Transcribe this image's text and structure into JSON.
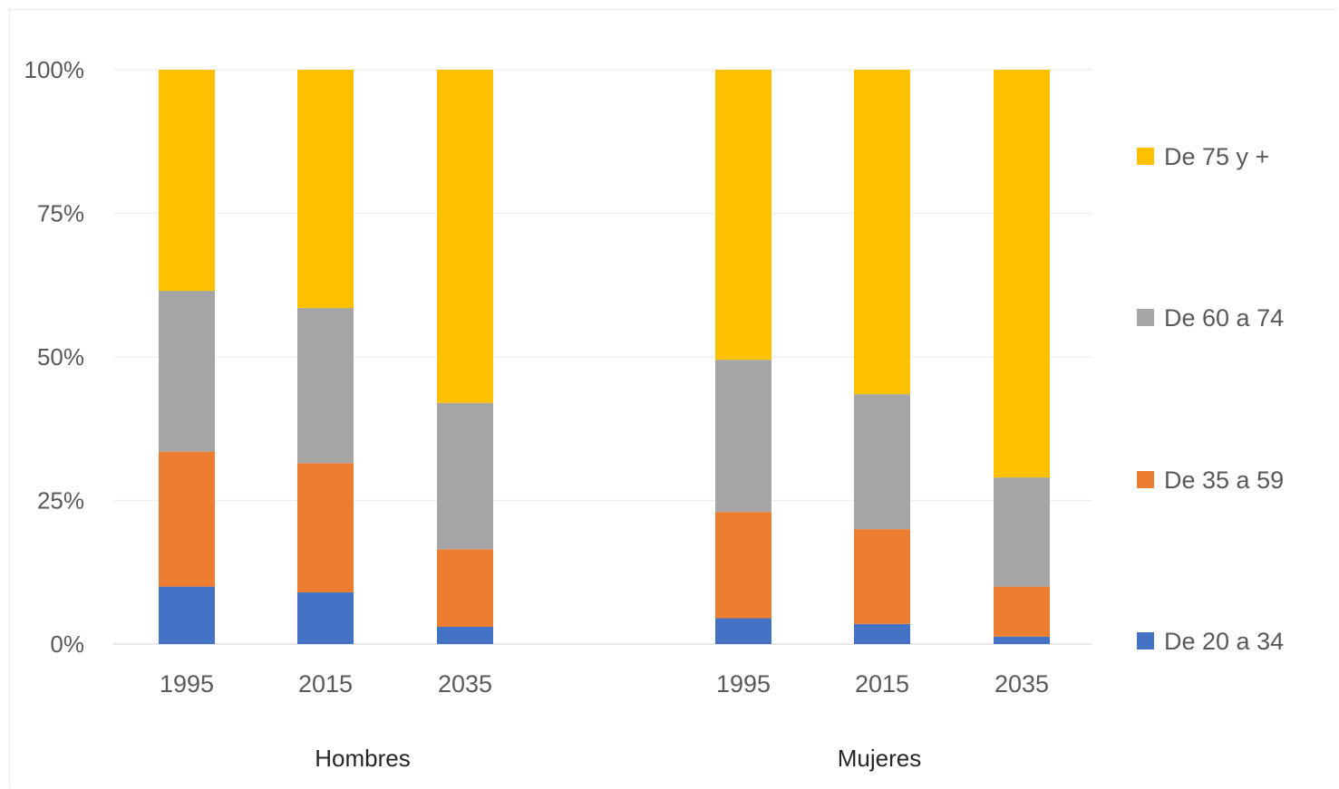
{
  "chart_data": {
    "type": "bar",
    "stacked": true,
    "percent_stacked": true,
    "groups": [
      {
        "label": "Hombres",
        "categories": [
          "1995",
          "2015",
          "2035"
        ]
      },
      {
        "label": "Mujeres",
        "categories": [
          "1995",
          "2015",
          "2035"
        ]
      }
    ],
    "series": [
      {
        "name": "De 20 a 34",
        "color": "#4472c4",
        "values": [
          10,
          9,
          3,
          4.5,
          3.5,
          1.3
        ]
      },
      {
        "name": "De 35 a 59",
        "color": "#ed7d31",
        "values": [
          23.5,
          22.5,
          13.5,
          18.5,
          16.5,
          8.7
        ]
      },
      {
        "name": "De 60 a 74",
        "color": "#a5a5a5",
        "values": [
          28,
          27,
          25.5,
          26.5,
          23.5,
          19
        ]
      },
      {
        "name": "De 75 y +",
        "color": "#ffc000",
        "values": [
          38.5,
          41.5,
          58,
          50.5,
          56.5,
          71
        ]
      }
    ],
    "y_ticks": [
      "0%",
      "25%",
      "50%",
      "75%",
      "100%"
    ],
    "ylim": [
      0,
      100
    ],
    "grid": true,
    "legend_placement": "right"
  }
}
